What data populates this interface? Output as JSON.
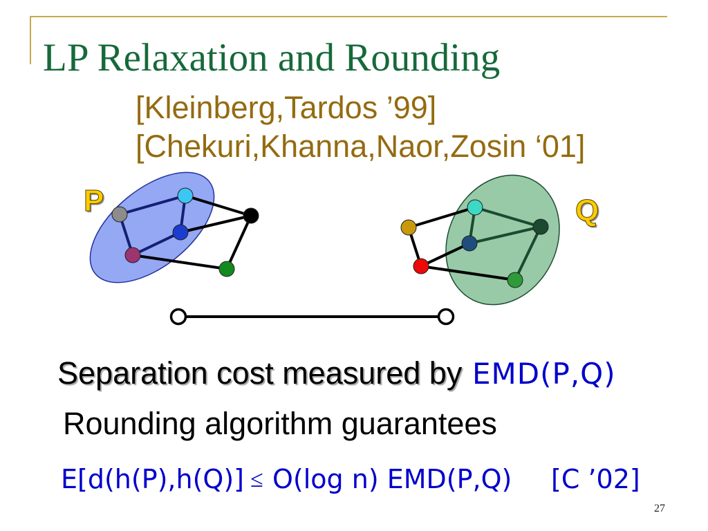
{
  "slide": {
    "title": "LP Relaxation and Rounding",
    "citations": [
      "[Kleinberg,Tardos ’99]",
      "[Chekuri,Khanna,Naor,Zosin ‘01]"
    ],
    "page_number": "27"
  },
  "diagram": {
    "left_set": {
      "label": "P",
      "fill": "#94A8F4",
      "outline": "#22309A",
      "inner_edge": "#151F74",
      "outer_edge": "#000000",
      "nodes": [
        "#8C8C8C",
        "#3CC6F4",
        "#1A3CCF",
        "#9C3470",
        "#000000",
        "#128A1E"
      ]
    },
    "right_set": {
      "label": "Q",
      "fill": "#98CAA8",
      "outline": "#1F4B30",
      "inner_edge": "#1C4A2E",
      "outer_edge": "#000000",
      "nodes": [
        "#C9980C",
        "#3DD9C5",
        "#1C4A31",
        "#1F4E7C",
        "#EE0808",
        "#2E9A3A"
      ]
    },
    "segment_color": "#000000"
  },
  "body": {
    "separation_text": "Separation cost measured by",
    "separation_metric": "EMD(P,Q)",
    "rounding_text": "Rounding algorithm guarantees",
    "bound_lhs": "E[d(h(P),h(Q)]",
    "bound_relation": "≤",
    "bound_rhs": "O(log n) EMD(P,Q)",
    "bound_reference": "[C ’02]"
  },
  "theme": {
    "title_color": "#17693A",
    "citation_color": "#946B10",
    "rule_color": "#C9A84C",
    "math_color": "#0000CC",
    "label_color": "#FFCC00"
  }
}
